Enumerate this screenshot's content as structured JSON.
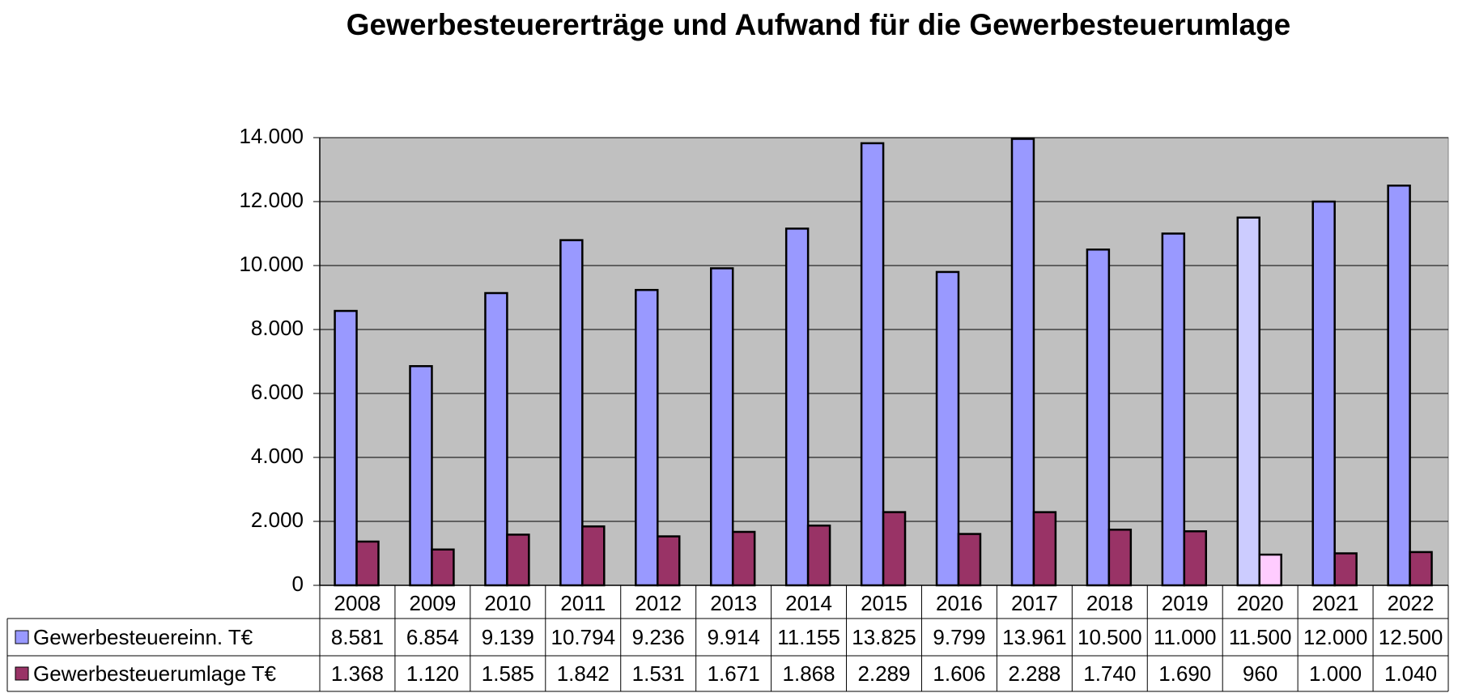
{
  "chart_data": {
    "type": "bar",
    "title": "Gewerbesteuererträge und Aufwand für die Gewerbesteuerumlage",
    "categories": [
      "2008",
      "2009",
      "2010",
      "2011",
      "2012",
      "2013",
      "2014",
      "2015",
      "2016",
      "2017",
      "2018",
      "2019",
      "2020",
      "2021",
      "2022"
    ],
    "series": [
      {
        "name": "Gewerbesteuereinn. T€",
        "color": "#9999ff",
        "colors": [
          "#9999ff",
          "#9999ff",
          "#9999ff",
          "#9999ff",
          "#9999ff",
          "#9999ff",
          "#9999ff",
          "#9999ff",
          "#9999ff",
          "#9999ff",
          "#9999ff",
          "#9999ff",
          "#ccccff",
          "#9999ff",
          "#9999ff"
        ],
        "values": [
          8581,
          6854,
          9139,
          10794,
          9236,
          9914,
          11155,
          13825,
          9799,
          13961,
          10500,
          11000,
          11500,
          12000,
          12500
        ],
        "value_labels": [
          "8.581",
          "6.854",
          "9.139",
          "10.794",
          "9.236",
          "9.914",
          "11.155",
          "13.825",
          "9.799",
          "13.961",
          "10.500",
          "11.000",
          "11.500",
          "12.000",
          "12.500"
        ]
      },
      {
        "name": "Gewerbesteuerumlage T€",
        "color": "#993366",
        "colors": [
          "#993366",
          "#993366",
          "#993366",
          "#993366",
          "#993366",
          "#993366",
          "#993366",
          "#993366",
          "#993366",
          "#993366",
          "#993366",
          "#993366",
          "#ffccff",
          "#993366",
          "#993366"
        ],
        "values": [
          1368,
          1120,
          1585,
          1842,
          1531,
          1671,
          1868,
          2289,
          1606,
          2288,
          1740,
          1690,
          960,
          1000,
          1040
        ],
        "value_labels": [
          "1.368",
          "1.120",
          "1.585",
          "1.842",
          "1.531",
          "1.671",
          "1.868",
          "2.289",
          "1.606",
          "2.288",
          "1.740",
          "1.690",
          "960",
          "1.000",
          "1.040"
        ]
      }
    ],
    "ylim": [
      0,
      14000
    ],
    "yticks": [
      0,
      {
        "value": 2000,
        "label": "2.000"
      },
      {
        "value": 4000,
        "label": "4.000"
      },
      {
        "value": 6000,
        "label": "6.000"
      },
      {
        "value": 8000,
        "label": "8.000"
      },
      {
        "value": 10000,
        "label": "10.000"
      },
      {
        "value": 12000,
        "label": "12.000"
      },
      {
        "value": 14000,
        "label": "14.000"
      }
    ],
    "grid": true
  }
}
